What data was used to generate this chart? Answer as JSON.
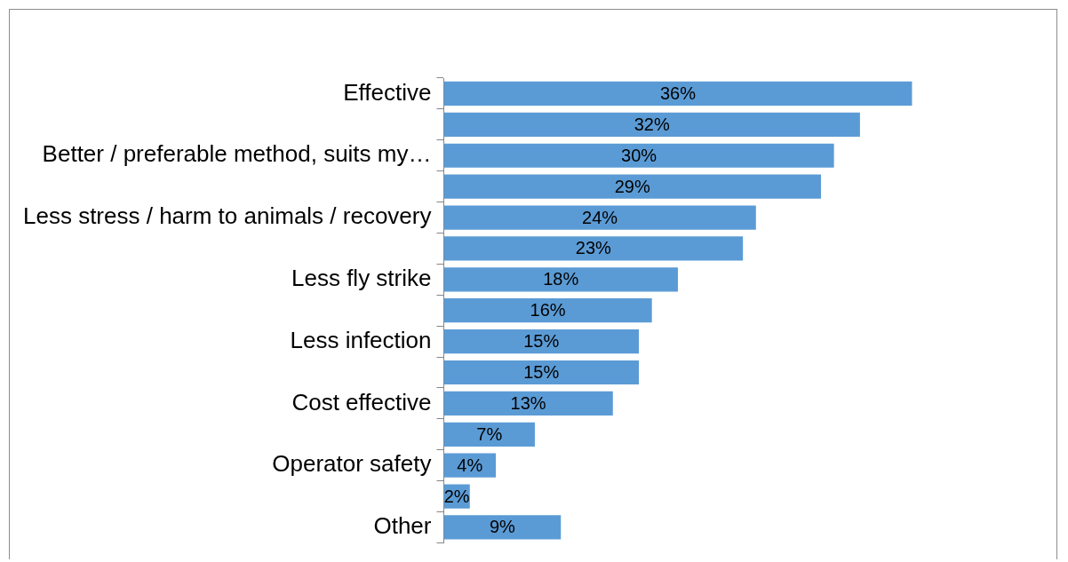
{
  "chart_data": {
    "type": "bar",
    "orientation": "horizontal",
    "categories": [
      "Effective",
      null,
      "Better / preferable method, suits my…",
      null,
      "Less stress / harm to animals / recovery",
      null,
      "Less fly strike",
      null,
      "Less infection",
      null,
      "Cost effective",
      null,
      "Operator safety",
      null,
      "Other"
    ],
    "values": [
      36,
      32,
      30,
      29,
      24,
      23,
      18,
      16,
      15,
      15,
      13,
      7,
      4,
      2,
      9
    ],
    "value_labels": [
      "36%",
      "32%",
      "30%",
      "29%",
      "24%",
      "23%",
      "18%",
      "16%",
      "15%",
      "15%",
      "13%",
      "7%",
      "4%",
      "2%",
      "9%"
    ],
    "color": "#5b9bd5"
  }
}
